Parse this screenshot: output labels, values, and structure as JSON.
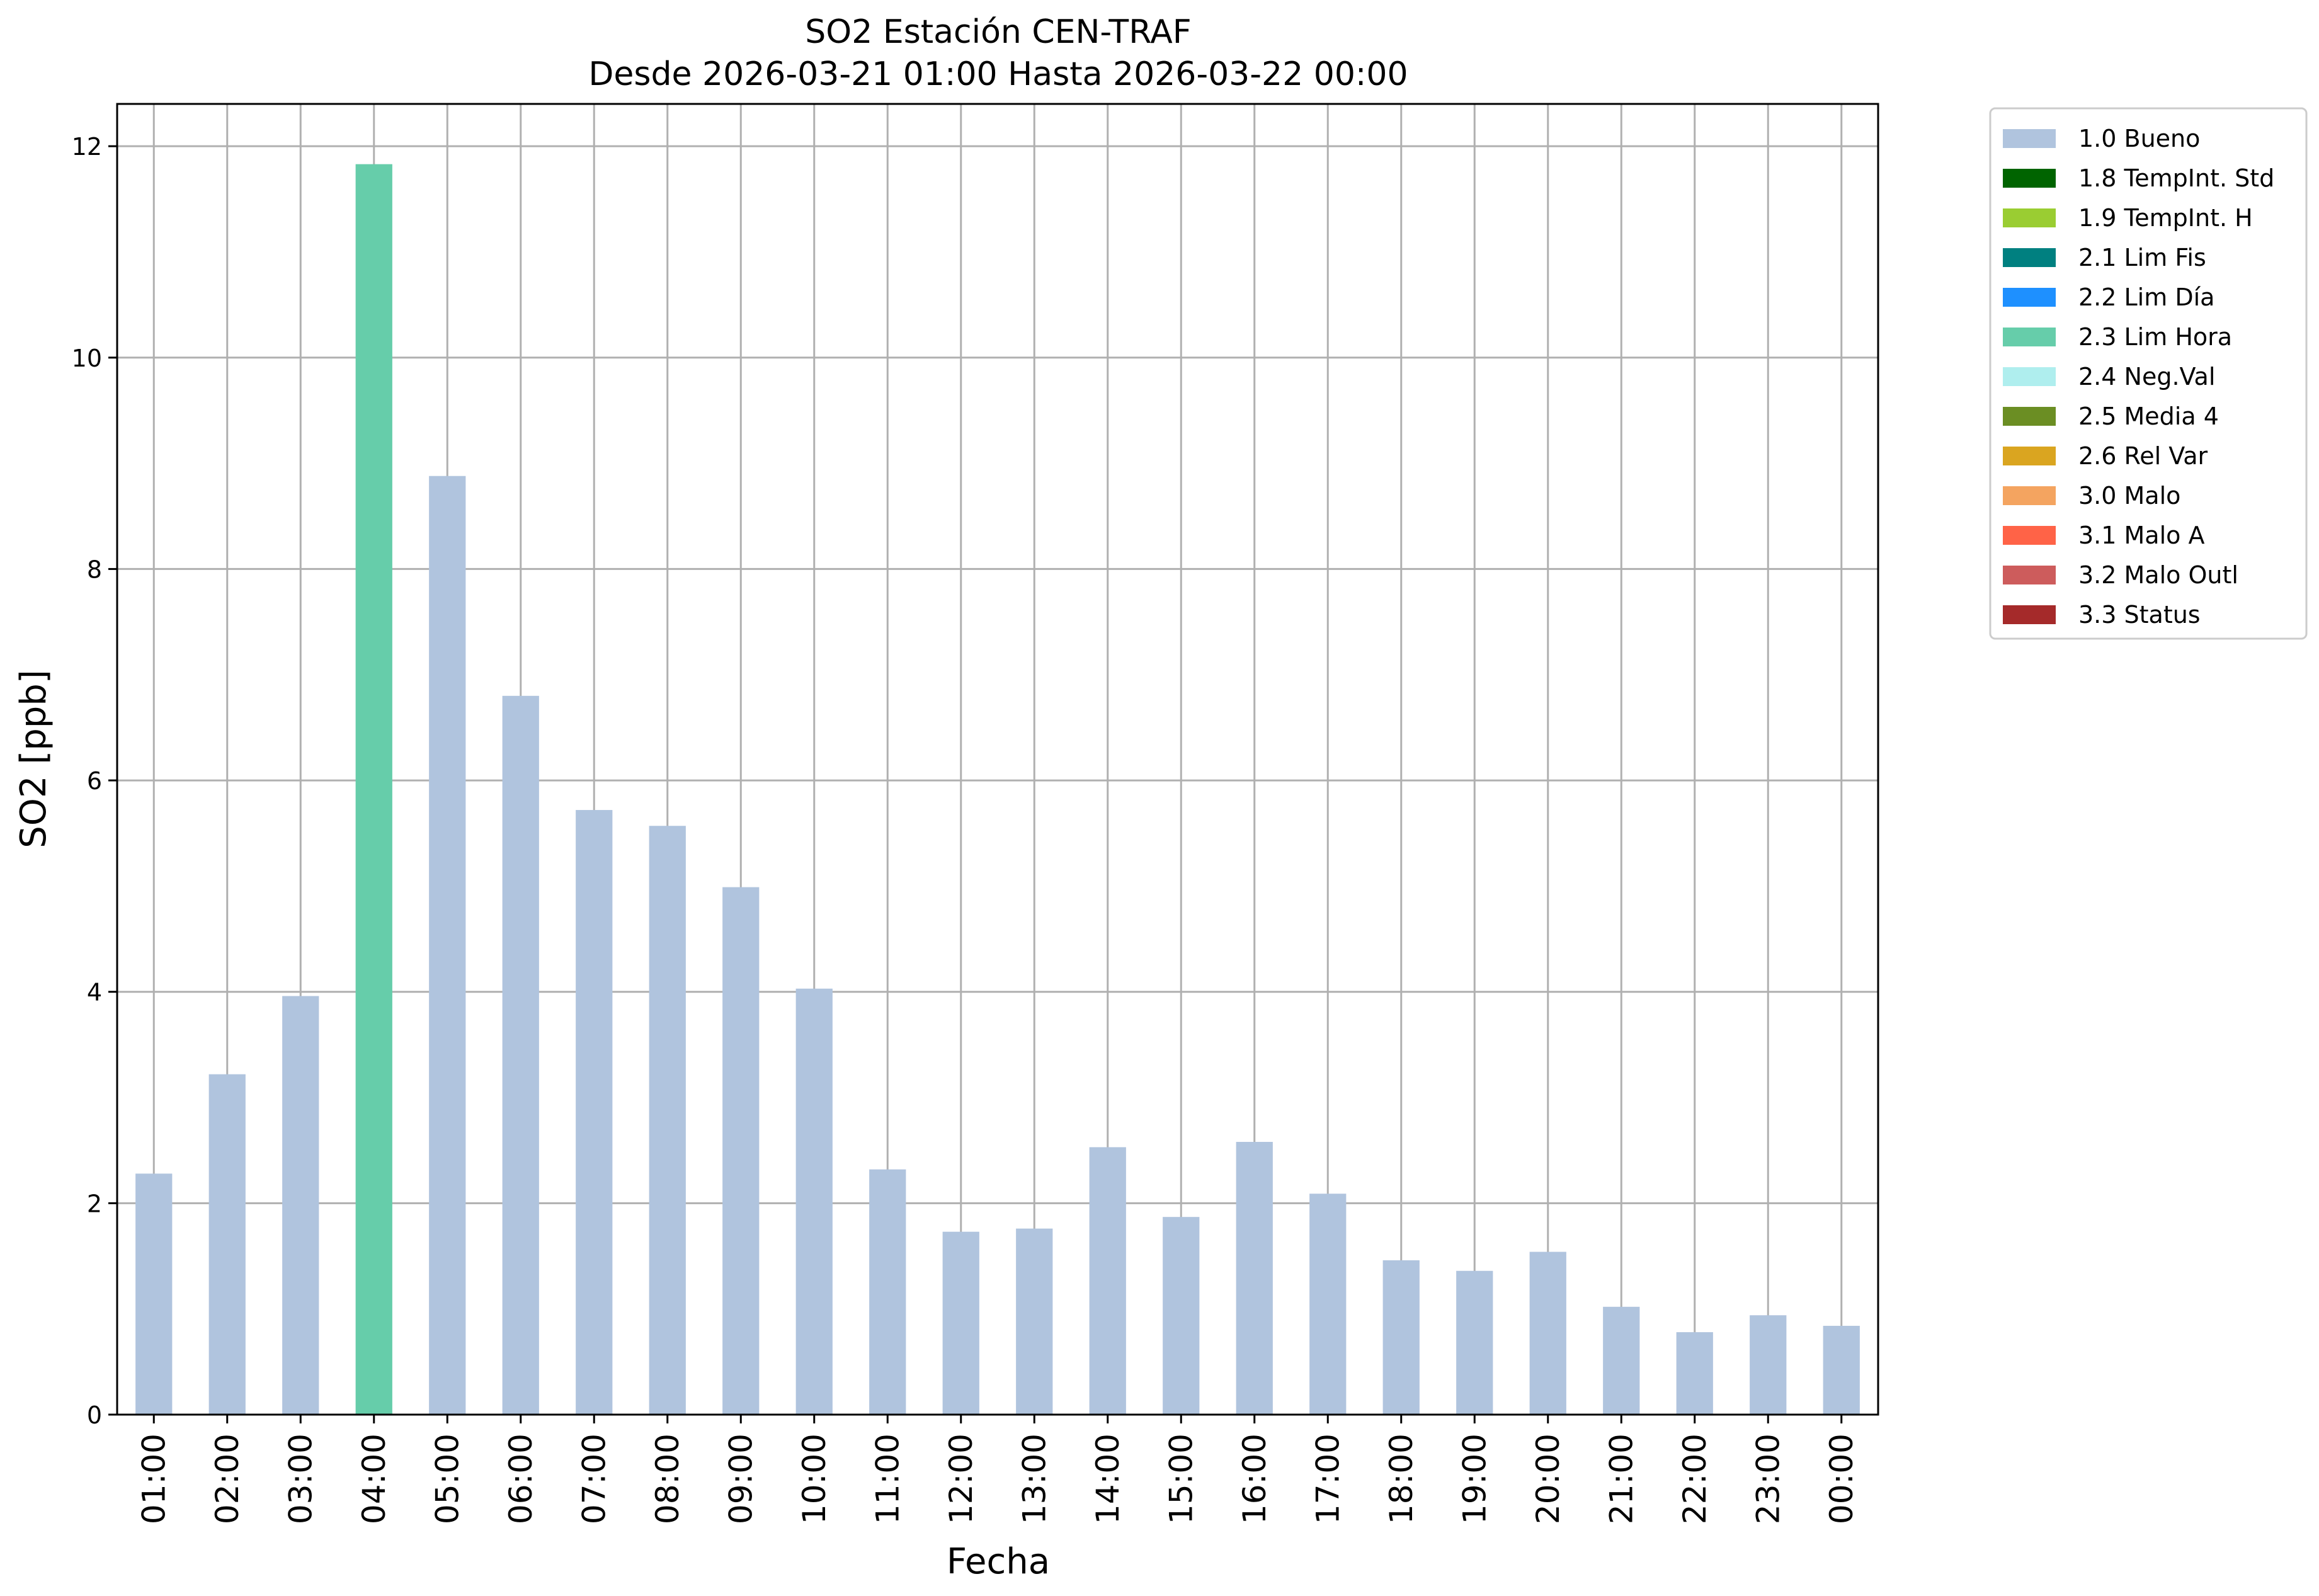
{
  "chart_data": {
    "type": "bar",
    "title": "SO2 Estación CEN-TRAF",
    "subtitle": "Desde 2026-03-21 01:00 Hasta 2026-03-22 00:00",
    "xlabel": "Fecha",
    "ylabel": "SO2 [ppb]",
    "ylim": [
      0,
      12.4
    ],
    "yticks": [
      0,
      2,
      4,
      6,
      8,
      10,
      12
    ],
    "grid": true,
    "legend_position": "outside-right-top",
    "categories": [
      "01:00",
      "02:00",
      "03:00",
      "04:00",
      "05:00",
      "06:00",
      "07:00",
      "08:00",
      "09:00",
      "10:00",
      "11:00",
      "12:00",
      "13:00",
      "14:00",
      "15:00",
      "16:00",
      "17:00",
      "18:00",
      "19:00",
      "20:00",
      "21:00",
      "22:00",
      "23:00",
      "00:00"
    ],
    "values": [
      2.28,
      3.22,
      3.96,
      11.83,
      8.88,
      6.8,
      5.72,
      5.57,
      4.99,
      4.03,
      2.32,
      1.73,
      1.76,
      2.53,
      1.87,
      2.58,
      2.09,
      1.46,
      1.36,
      1.54,
      1.02,
      0.78,
      0.94,
      0.84
    ],
    "flags": [
      "1.0 Bueno",
      "1.0 Bueno",
      "1.0 Bueno",
      "2.3 Lim Hora",
      "1.0 Bueno",
      "1.0 Bueno",
      "1.0 Bueno",
      "1.0 Bueno",
      "1.0 Bueno",
      "1.0 Bueno",
      "1.0 Bueno",
      "1.0 Bueno",
      "1.0 Bueno",
      "1.0 Bueno",
      "1.0 Bueno",
      "1.0 Bueno",
      "1.0 Bueno",
      "1.0 Bueno",
      "1.0 Bueno",
      "1.0 Bueno",
      "1.0 Bueno",
      "1.0 Bueno",
      "1.0 Bueno",
      "1.0 Bueno"
    ],
    "legend": [
      {
        "label": "1.0 Bueno",
        "color": "#b0c4de"
      },
      {
        "label": "1.8 TempInt. Std",
        "color": "#006400"
      },
      {
        "label": "1.9 TempInt. H",
        "color": "#9acd32"
      },
      {
        "label": "2.1 Lim Fis",
        "color": "#008080"
      },
      {
        "label": "2.2 Lim Día",
        "color": "#1e90ff"
      },
      {
        "label": "2.3 Lim Hora",
        "color": "#66cdaa"
      },
      {
        "label": "2.4 Neg.Val",
        "color": "#afeeee"
      },
      {
        "label": "2.5 Media 4",
        "color": "#6b8e23"
      },
      {
        "label": "2.6 Rel Var",
        "color": "#daa520"
      },
      {
        "label": "3.0 Malo",
        "color": "#f4a460"
      },
      {
        "label": "3.1 Malo A",
        "color": "#ff6347"
      },
      {
        "label": "3.2 Malo Outl",
        "color": "#cd5c5c"
      },
      {
        "label": "3.3 Status",
        "color": "#a52a2a"
      }
    ]
  }
}
